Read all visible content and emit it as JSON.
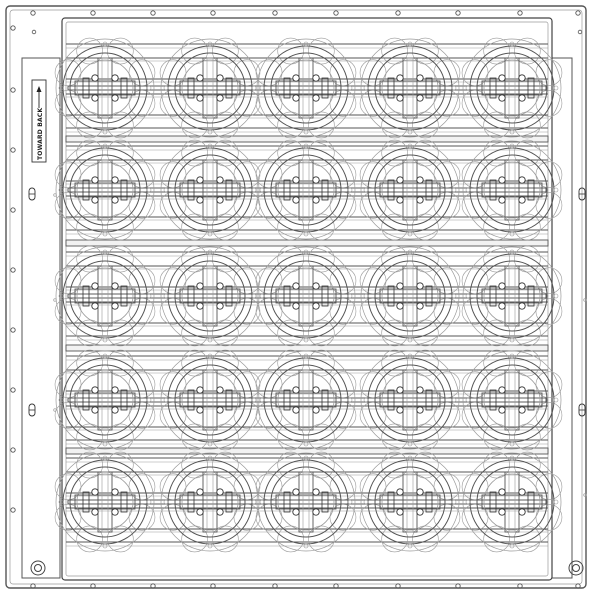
{
  "diagram": {
    "direction_label": "TOWARD BACK",
    "grid": {
      "rows": 5,
      "cols": 5
    },
    "colors": {
      "stroke": "#555555",
      "stroke_light": "#9a9a9a",
      "stroke_dark": "#333333",
      "fill": "#ffffff",
      "accent": "#222222"
    }
  }
}
